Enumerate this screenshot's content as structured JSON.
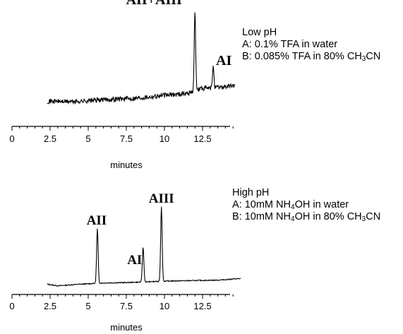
{
  "chart_data": [
    {
      "type": "line",
      "title": "",
      "xlabel": "minutes",
      "ylabel": "",
      "xlim": [
        0,
        15
      ],
      "xticks": [
        0,
        2.5,
        5,
        7.5,
        10,
        12.5
      ],
      "xtick_labels": [
        "0",
        "2.5",
        "5",
        "7.5",
        "10",
        "12.5"
      ],
      "grid": false,
      "condition": {
        "heading": "Low pH",
        "line_a": {
          "prefix": "A: 0.1% TFA in water"
        },
        "line_b": {
          "prefix": "B: 0.085% TFA in 80% CH",
          "sub1": "3",
          "suffix": "CN"
        }
      },
      "peaks": [
        {
          "label": "AII+AIII",
          "x": 12.0,
          "height": 1.0
        },
        {
          "label": "AI",
          "x": 13.2,
          "height": 0.44
        }
      ],
      "series": [
        {
          "x": [
            2.3,
            4.0,
            6.0,
            8.0,
            10.0,
            11.5,
            12.4,
            13.0,
            14.6
          ],
          "y": [
            0.07,
            0.065,
            0.085,
            0.1,
            0.13,
            0.15,
            0.2,
            0.2,
            0.23
          ]
        }
      ]
    },
    {
      "type": "line",
      "title": "",
      "xlabel": "minutes",
      "ylabel": "",
      "xlim": [
        0,
        15
      ],
      "xticks": [
        0,
        2.5,
        5,
        7.5,
        10,
        12.5
      ],
      "xtick_labels": [
        "0",
        "2.5",
        "5",
        "7.5",
        "10",
        "12.5"
      ],
      "grid": false,
      "condition": {
        "heading": "High pH",
        "line_a": {
          "prefix": "A: 10mM NH",
          "sub1": "4",
          "suffix": "OH in water"
        },
        "line_b": {
          "prefix": "B: 10mM NH",
          "sub1": "4",
          "middle": "OH in 80% CH",
          "sub2": "3",
          "suffix": "CN"
        }
      },
      "peaks": [
        {
          "label": "AII",
          "x": 5.6,
          "height": 0.73
        },
        {
          "label": "AI",
          "x": 8.6,
          "height": 0.5
        },
        {
          "label": "AIII",
          "x": 9.8,
          "height": 1.0
        }
      ],
      "series": [
        {
          "x": [
            2.3,
            3.0,
            4.5,
            6.0,
            7.5,
            9.0,
            10.5,
            12.0,
            13.5,
            15.0
          ],
          "y": [
            0.04,
            0.02,
            0.04,
            0.055,
            0.06,
            0.07,
            0.08,
            0.085,
            0.09,
            0.11
          ]
        }
      ]
    }
  ]
}
